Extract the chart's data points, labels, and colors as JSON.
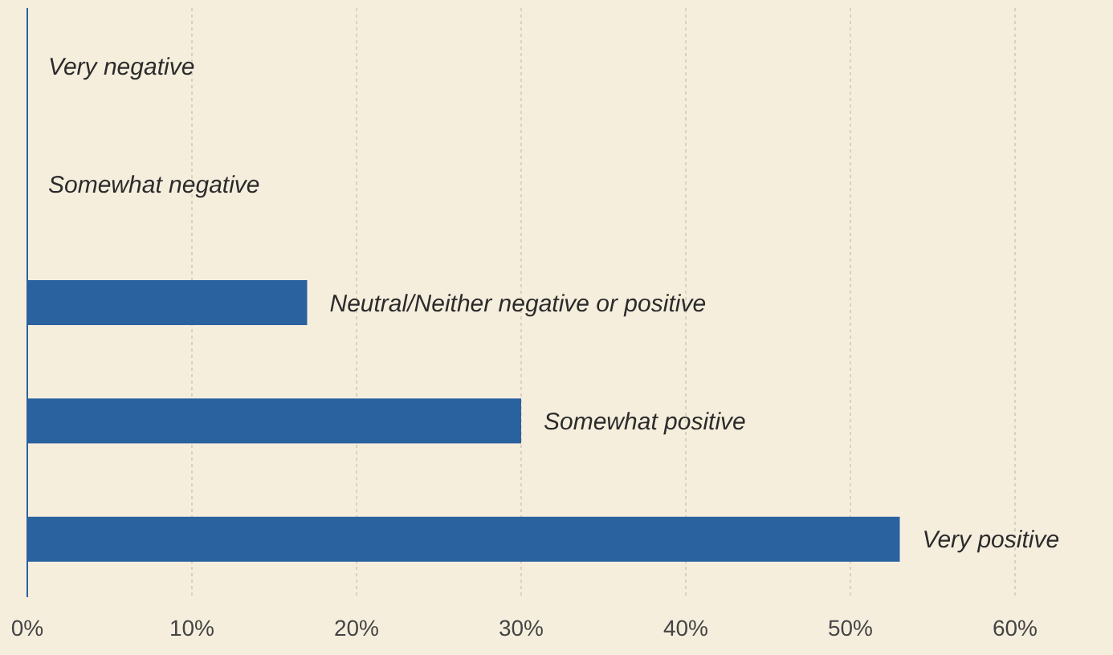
{
  "chart_data": {
    "type": "bar",
    "orientation": "horizontal",
    "categories": [
      "Very negative",
      "Somewhat negative",
      "Neutral/Neither negative or positive",
      "Somewhat positive",
      "Very positive"
    ],
    "values": [
      0,
      0,
      17,
      30,
      53
    ],
    "color": "#2a62a0",
    "xlim": [
      0,
      60
    ],
    "xticks": [
      {
        "value": 0,
        "label": "0%"
      },
      {
        "value": 10,
        "label": "10%"
      },
      {
        "value": 20,
        "label": "20%"
      },
      {
        "value": 30,
        "label": "30%"
      },
      {
        "value": 40,
        "label": "40%"
      },
      {
        "value": 50,
        "label": "50%"
      },
      {
        "value": 60,
        "label": "60%"
      }
    ],
    "grid": "x"
  }
}
